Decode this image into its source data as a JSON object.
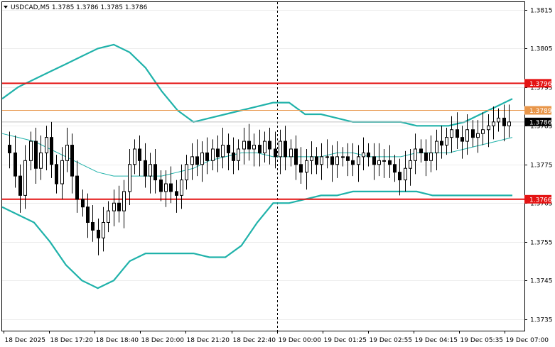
{
  "header": {
    "symbol_info": "USDCAD,M5  1.3785 1.3786 1.3785 1.3786",
    "menu_glyph": "▼"
  },
  "colors": {
    "background": "#ffffff",
    "bollinger": "#20b2aa",
    "level_red": "#e41414",
    "level_orange": "#e8964a",
    "bid_line": "#c0c0c0",
    "candles": "#000000"
  },
  "chart_data": {
    "type": "candlestick",
    "title": "USDCAD,M5",
    "ylim": [
      1.373,
      1.382
    ],
    "yticks": [
      "1.3815",
      "1.3805",
      "1.3795",
      "1.3785",
      "1.3775",
      "1.3765",
      "1.3755",
      "1.3745",
      "1.3735"
    ],
    "xticks": [
      "18 Dec 2025",
      "18 Dec 17:20",
      "18 Dec 18:40",
      "18 Dec 20:00",
      "18 Dec 21:20",
      "18 Dec 22:40",
      "19 Dec 00:00",
      "19 Dec 01:25",
      "19 Dec 02:55",
      "19 Dec 04:15",
      "19 Dec 05:35",
      "19 Dec 07:00"
    ],
    "day_separator_at": "19 Dec 00:00",
    "levels": [
      {
        "name": "resistance",
        "value": 1.3796,
        "label": "1.3796",
        "color": "#e41414"
      },
      {
        "name": "pivot",
        "value": 1.3789,
        "label": "1.3789",
        "color": "#e8964a"
      },
      {
        "name": "support",
        "value": 1.3766,
        "label": "1.3766",
        "color": "#e41414"
      }
    ],
    "current_price": {
      "value": 1.3786,
      "label": "1.3786"
    },
    "ohlc_path": [
      1.378,
      1.3778,
      1.3772,
      1.3767,
      1.3776,
      1.3781,
      1.3774,
      1.3778,
      1.3782,
      1.3775,
      1.377,
      1.3776,
      1.378,
      1.3772,
      1.3766,
      1.3764,
      1.376,
      1.3758,
      1.3756,
      1.376,
      1.3763,
      1.3765,
      1.3763,
      1.3768,
      1.3775,
      1.3779,
      1.3776,
      1.3772,
      1.3775,
      1.3771,
      1.3768,
      1.377,
      1.3768,
      1.3767,
      1.3771,
      1.3775,
      1.3777,
      1.3775,
      1.3778,
      1.3776,
      1.3779,
      1.3777,
      1.378,
      1.3778,
      1.3776,
      1.3779,
      1.3781,
      1.3779,
      1.378,
      1.3778,
      1.3781,
      1.3779,
      1.3777,
      1.3781,
      1.3777,
      1.3779,
      1.3775,
      1.3773,
      1.3776,
      1.3777,
      1.3775,
      1.3777,
      1.3777,
      1.3775,
      1.3777,
      1.3777,
      1.3776,
      1.3775,
      1.3777,
      1.3778,
      1.3777,
      1.3775,
      1.3776,
      1.3776,
      1.3775,
      1.3773,
      1.3771,
      1.3774,
      1.3776,
      1.3779,
      1.3778,
      1.3776,
      1.3778,
      1.3781,
      1.378,
      1.3782,
      1.3784,
      1.3782,
      1.3781,
      1.3784,
      1.3782,
      1.3783,
      1.3784,
      1.3785,
      1.3786,
      1.3787,
      1.3785,
      1.3786
    ],
    "bollinger": {
      "upper": [
        1.3792,
        1.3795,
        1.3797,
        1.3799,
        1.3801,
        1.3803,
        1.3805,
        1.3806,
        1.3804,
        1.38,
        1.3794,
        1.3789,
        1.3786,
        1.3787,
        1.3788,
        1.3789,
        1.379,
        1.3791,
        1.3791,
        1.3788,
        1.3788,
        1.3787,
        1.3786,
        1.3786,
        1.3786,
        1.3786,
        1.3785,
        1.3785,
        1.3785,
        1.3786,
        1.3788,
        1.379,
        1.3792
      ],
      "middle": [
        1.3783,
        1.3782,
        1.3781,
        1.3779,
        1.3777,
        1.3775,
        1.3773,
        1.3772,
        1.3772,
        1.3772,
        1.3772,
        1.3773,
        1.3774,
        1.3776,
        1.3777,
        1.3778,
        1.3778,
        1.3777,
        1.3777,
        1.3777,
        1.3777,
        1.3778,
        1.3778,
        1.3777,
        1.3777,
        1.3777,
        1.3778,
        1.3778,
        1.3778,
        1.3779,
        1.378,
        1.3781,
        1.3782
      ],
      "lower": [
        1.3764,
        1.3762,
        1.376,
        1.3755,
        1.3749,
        1.3745,
        1.3743,
        1.3745,
        1.375,
        1.3752,
        1.3752,
        1.3752,
        1.3752,
        1.3751,
        1.3751,
        1.3754,
        1.376,
        1.3765,
        1.3765,
        1.3766,
        1.3767,
        1.3767,
        1.3768,
        1.3768,
        1.3768,
        1.3768,
        1.3768,
        1.3767,
        1.3767,
        1.3767,
        1.3767,
        1.3767,
        1.3767
      ]
    }
  }
}
